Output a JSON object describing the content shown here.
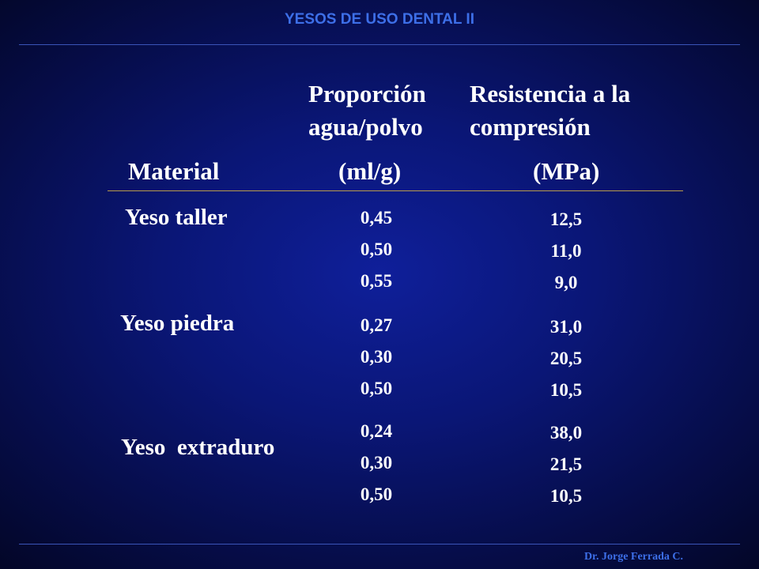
{
  "header": {
    "title": "YESOS DE USO DENTAL II"
  },
  "columns": {
    "material": "Material",
    "ratio": {
      "line1": "Proporción",
      "line2": "agua/polvo",
      "unit": "(ml/g)"
    },
    "strength": {
      "line1": "Resistencia a la",
      "line2": "compresión",
      "unit": "(MPa)"
    }
  },
  "rows": [
    {
      "material": "Yeso taller",
      "ratios": [
        "0,45",
        "0,50",
        "0,55"
      ],
      "strengths": [
        "12,5",
        "11,0",
        "9,0"
      ]
    },
    {
      "material": "Yeso piedra",
      "ratios": [
        "0,27",
        "0,30",
        "0,50"
      ],
      "strengths": [
        "31,0",
        "20,5",
        "10,5"
      ]
    },
    {
      "material": "Yeso  extraduro",
      "ratios": [
        "0,24",
        "0,30",
        "0,50"
      ],
      "strengths": [
        "38,0",
        "21,5",
        "10,5"
      ]
    }
  ],
  "footer": {
    "author": "Dr. Jorge Ferrada C."
  }
}
